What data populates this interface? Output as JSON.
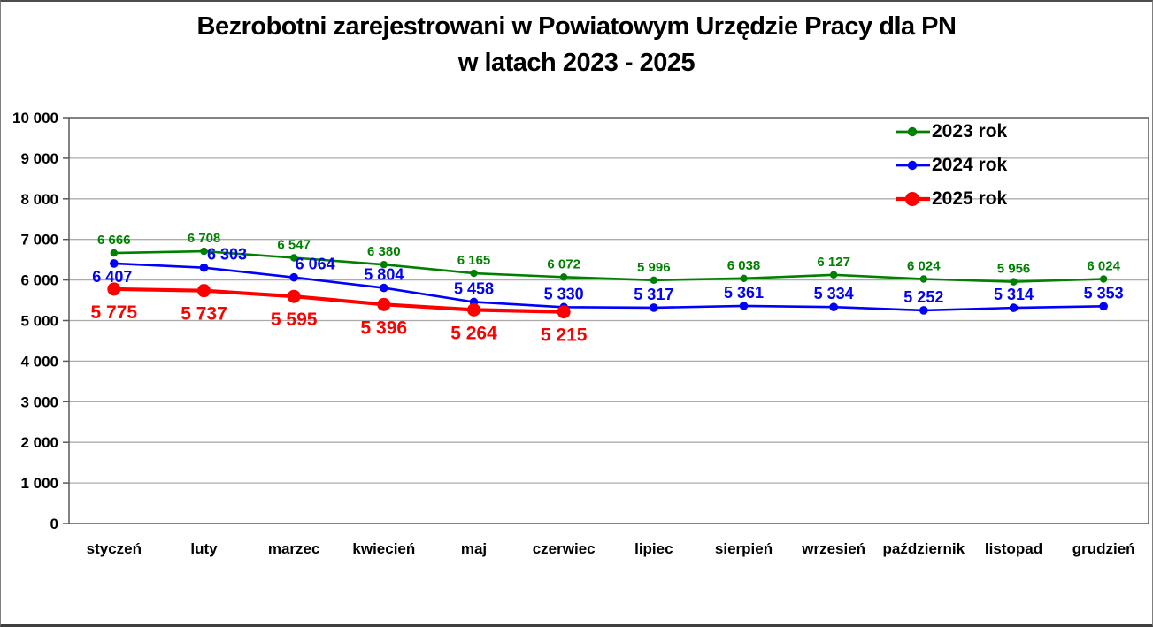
{
  "figure": {
    "title_line1": "Bezrobotni zarejestrowani w Powiatowym Urzędzie Pracy dla PN",
    "title_line2": "w latach 2023 - 2025"
  },
  "chart_data": {
    "type": "line",
    "title": "Bezrobotni zarejestrowani w Powiatowym Urzędzie Pracy dla PN w latach 2023 - 2025",
    "categories": [
      "styczeń",
      "luty",
      "marzec",
      "kwiecień",
      "maj",
      "czerwiec",
      "lipiec",
      "sierpień",
      "wrzesień",
      "październik",
      "listopad",
      "grudzień"
    ],
    "series": [
      {
        "name": "2023 rok",
        "color": "#008000",
        "values": [
          6666,
          6708,
          6547,
          6380,
          6165,
          6072,
          5996,
          6038,
          6127,
          6024,
          5956,
          6024
        ]
      },
      {
        "name": "2024 rok",
        "color": "#0000ff",
        "values": [
          6407,
          6303,
          6064,
          5804,
          5458,
          5330,
          5317,
          5361,
          5334,
          5252,
          5314,
          5353
        ]
      },
      {
        "name": "2025 rok",
        "color": "#ff0000",
        "values": [
          5775,
          5737,
          5595,
          5396,
          5264,
          5215
        ]
      }
    ],
    "xlabel": "",
    "ylabel": "",
    "ylim": [
      0,
      10000
    ],
    "ytick_step": 1000,
    "ytick_labels": [
      "0",
      "1 000",
      "2 000",
      "3 000",
      "4 000",
      "5 000",
      "6 000",
      "7 000",
      "8 000",
      "9 000",
      "10 000"
    ],
    "grid": "horizontal",
    "legend_position": "top-right-inside",
    "number_format": "space-thousands",
    "data_labels_shown": true,
    "colors": {
      "background": "#ffffff",
      "gridline": "#ababab",
      "plot_border": "#595959",
      "text": "#000000"
    }
  }
}
